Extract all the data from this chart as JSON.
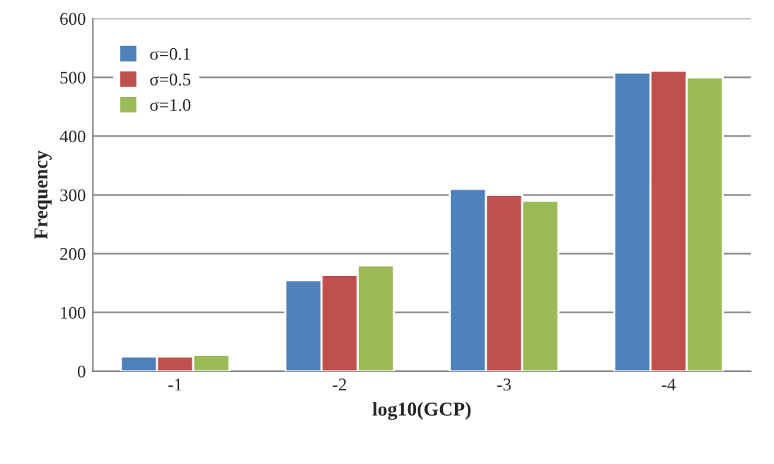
{
  "chart_data": {
    "type": "bar",
    "xlabel": "log10(GCP)",
    "ylabel": "Frequency",
    "categories": [
      "-1",
      "-2",
      "-3",
      "-4"
    ],
    "series": [
      {
        "name": "σ=0.1",
        "color": "#4f81bd",
        "values": [
          25,
          155,
          310,
          508
        ]
      },
      {
        "name": "σ=0.5",
        "color": "#c0504d",
        "values": [
          25,
          164,
          300,
          511
        ]
      },
      {
        "name": "σ=1.0",
        "color": "#9bbb59",
        "values": [
          28,
          180,
          290,
          500
        ]
      }
    ],
    "ylim": [
      0,
      600
    ],
    "yticks": [
      0,
      100,
      200,
      300,
      400,
      500,
      600
    ],
    "grid": "y",
    "legend": "top left"
  }
}
